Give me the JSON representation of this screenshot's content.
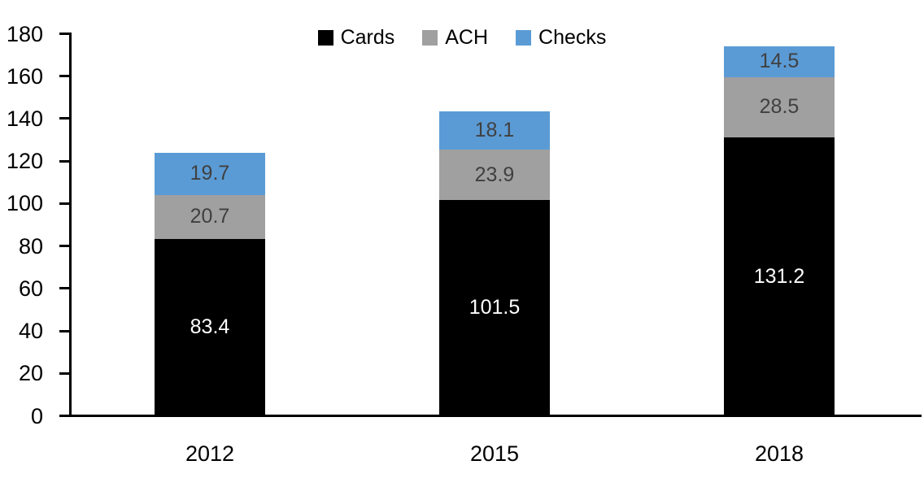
{
  "chart_data": {
    "type": "bar",
    "stacked": true,
    "title": "",
    "xlabel": "",
    "ylabel": "",
    "categories": [
      "2012",
      "2015",
      "2018"
    ],
    "series": [
      {
        "name": "Cards",
        "color": "#000000",
        "label_color": "#ffffff",
        "values": [
          83.4,
          101.5,
          131.2
        ]
      },
      {
        "name": "ACH",
        "color": "#a0a0a0",
        "label_color": "#404040",
        "values": [
          20.7,
          23.9,
          28.5
        ]
      },
      {
        "name": "Checks",
        "color": "#5b9bd5",
        "label_color": "#404040",
        "values": [
          19.7,
          18.1,
          14.5
        ]
      }
    ],
    "totals": [
      123.8,
      143.5,
      174.2
    ],
    "ylim": [
      0,
      180
    ],
    "yticks": [
      0,
      20,
      40,
      60,
      80,
      100,
      120,
      140,
      160,
      180
    ],
    "grid": false,
    "legend_position": "top-center",
    "axis_color": "#000000",
    "background_color": "#ffffff"
  }
}
